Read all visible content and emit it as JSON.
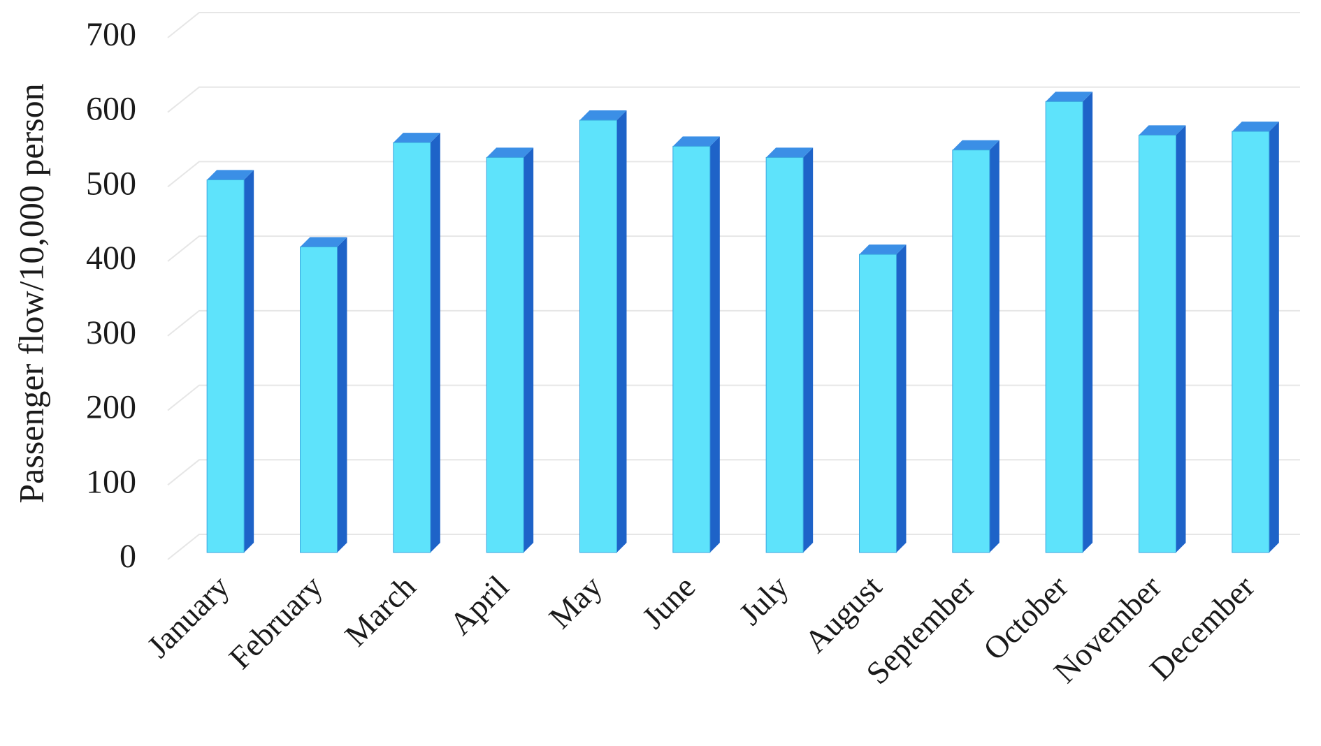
{
  "chart_data": {
    "type": "bar",
    "y_label": "Passenger flow/10,000 person",
    "categories": [
      "January",
      "February",
      "March",
      "April",
      "May",
      "June",
      "July",
      "August",
      "September",
      "October",
      "November",
      "December"
    ],
    "values": [
      500,
      410,
      550,
      530,
      580,
      545,
      530,
      400,
      540,
      605,
      560,
      565
    ],
    "color": "#5ee3fb",
    "ylim": [
      0,
      700
    ],
    "yticks": [
      0,
      100,
      200,
      300,
      400,
      500,
      600,
      700
    ],
    "grid": true
  }
}
